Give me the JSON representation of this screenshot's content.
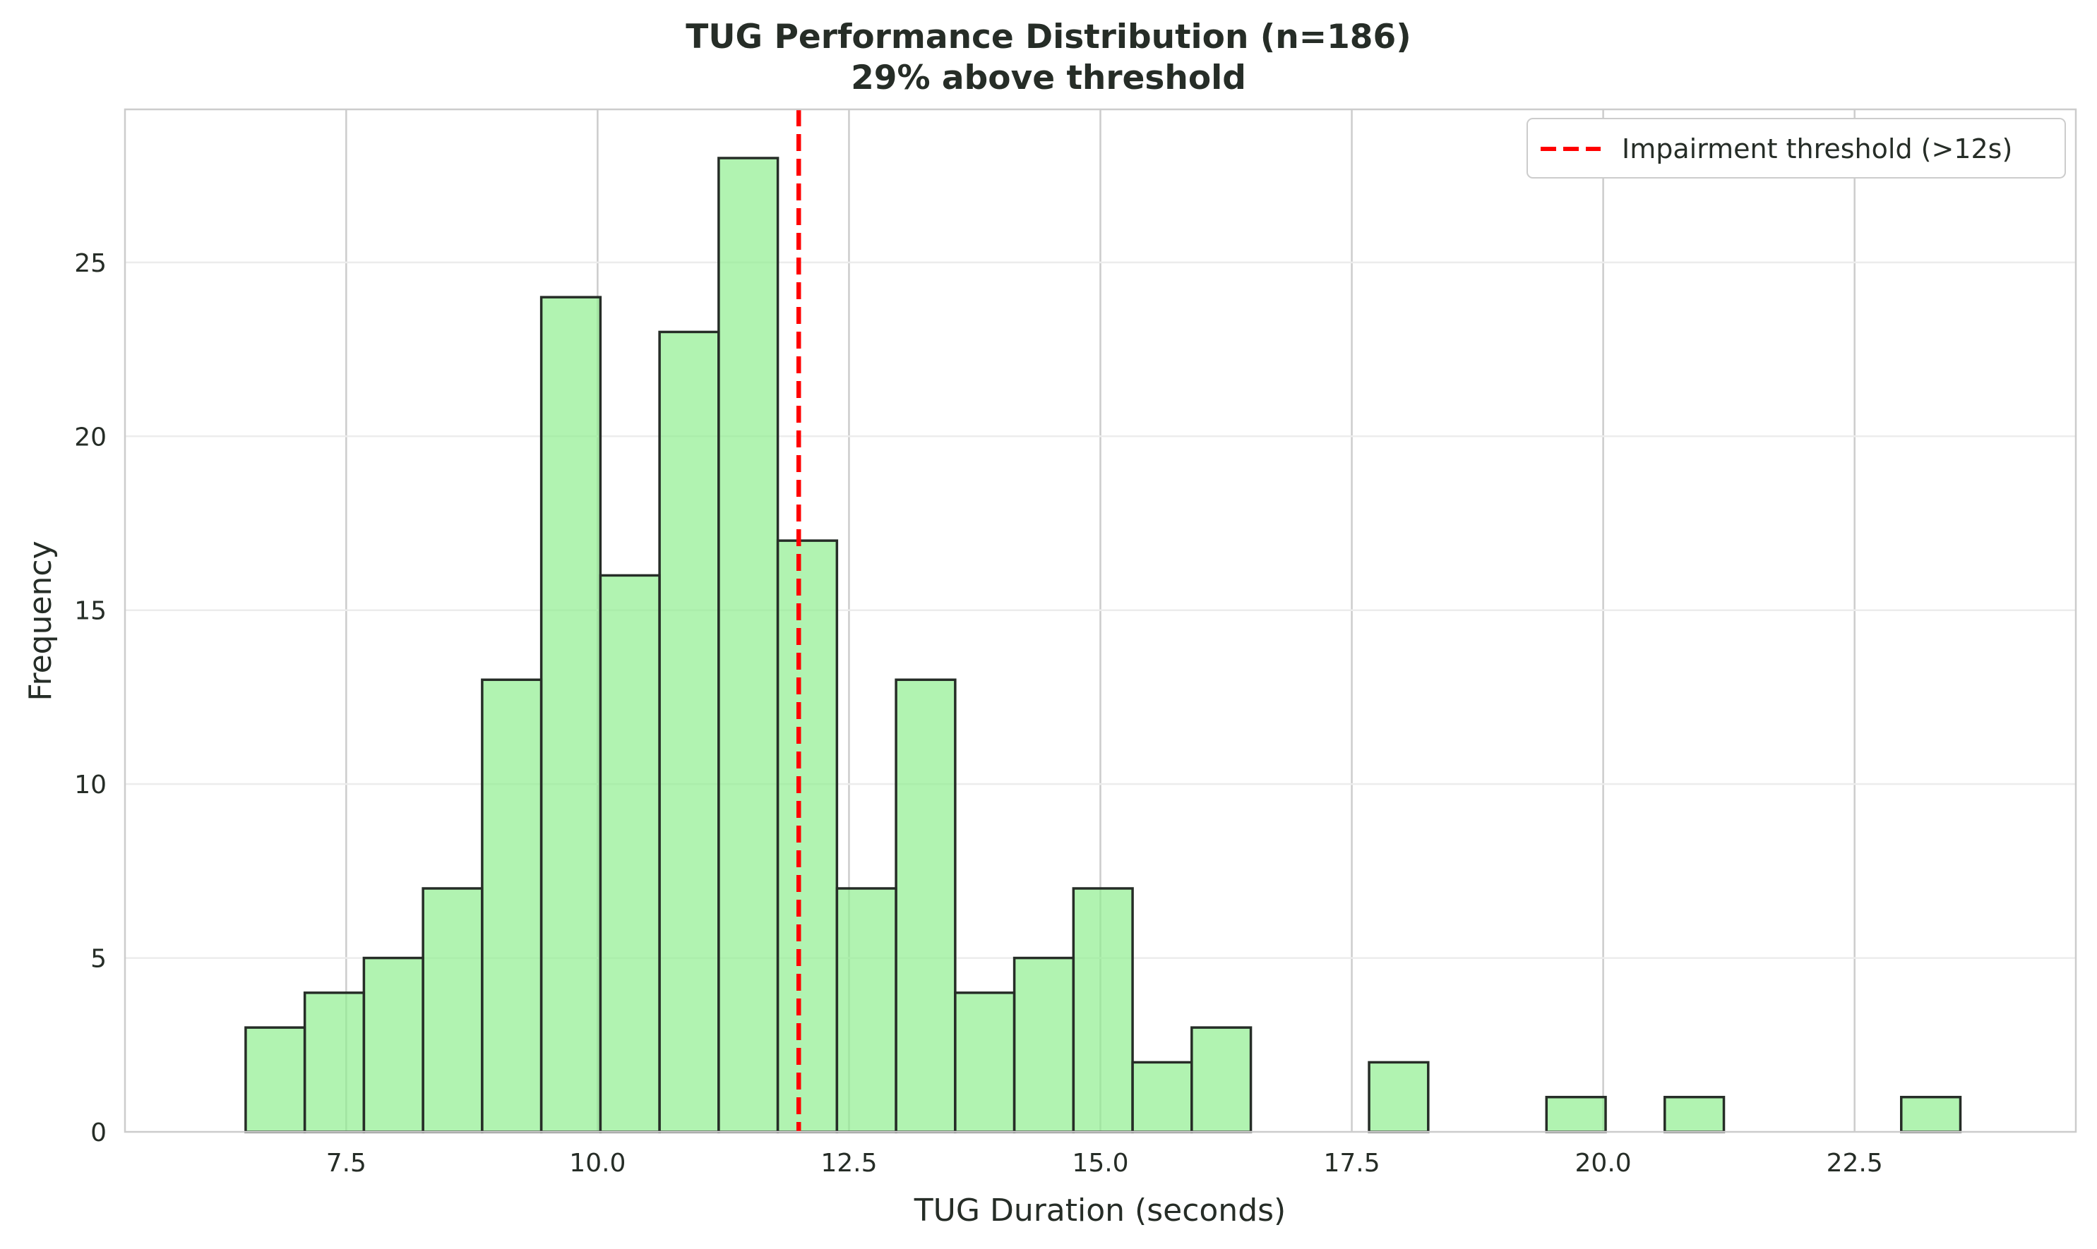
{
  "chart_data": {
    "type": "bar",
    "title": "TUG Performance Distribution (n=186)",
    "subtitle": "29% above threshold",
    "xlabel": "TUG Duration (seconds)",
    "ylabel": "Frequency",
    "xlim": [
      5.3,
      24.7
    ],
    "ylim": [
      0,
      29.4
    ],
    "x_ticks": [
      7.5,
      10.0,
      12.5,
      15.0,
      17.5,
      20.0,
      22.5
    ],
    "x_tick_labels": [
      "7.5",
      "10.0",
      "12.5",
      "15.0",
      "17.5",
      "20.0",
      "22.5"
    ],
    "y_ticks": [
      0,
      5,
      10,
      15,
      20,
      25
    ],
    "y_tick_labels": [
      "0",
      "5",
      "10",
      "15",
      "20",
      "25"
    ],
    "grid": true,
    "bin_start": 6.5,
    "bin_width": 0.588,
    "counts": [
      3,
      4,
      5,
      7,
      13,
      24,
      16,
      23,
      28,
      17,
      7,
      13,
      4,
      5,
      7,
      2,
      3,
      0,
      0,
      2,
      0,
      0,
      1,
      0,
      1,
      0,
      0,
      0,
      1
    ],
    "bar_color": "#90ee90",
    "threshold": {
      "value": 12,
      "label": "Impairment threshold (>12s)",
      "color": "#ff0000"
    },
    "legend_position": "top-right"
  }
}
